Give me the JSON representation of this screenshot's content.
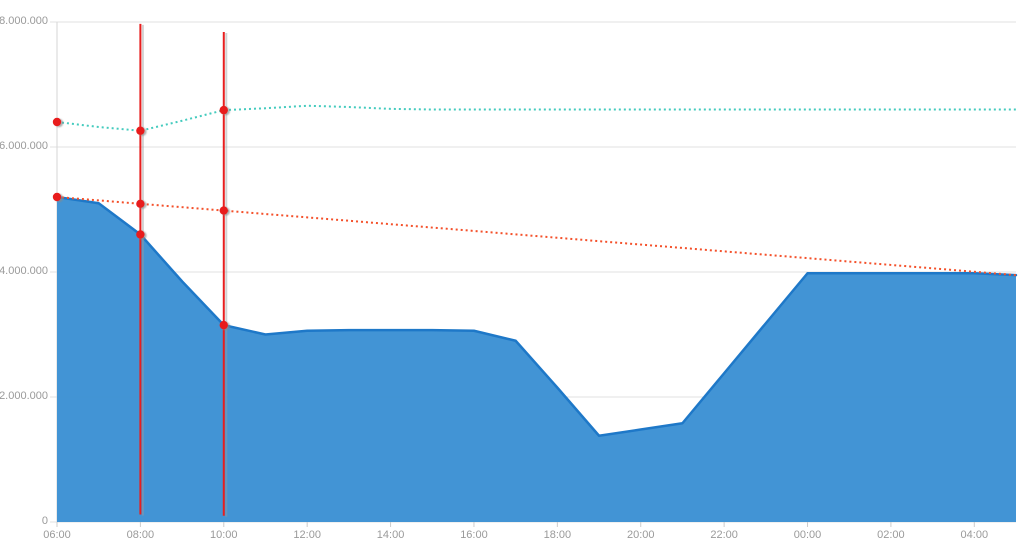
{
  "chart_data": {
    "type": "area",
    "title": "",
    "legend": "none",
    "grid": "horizontal",
    "x_categories_hourly": [
      "06:00",
      "07:00",
      "08:00",
      "09:00",
      "10:00",
      "11:00",
      "12:00",
      "13:00",
      "14:00",
      "15:00",
      "16:00",
      "17:00",
      "18:00",
      "19:00",
      "20:00",
      "21:00",
      "22:00",
      "23:00",
      "00:00",
      "01:00",
      "02:00",
      "03:00",
      "04:00",
      "05:00"
    ],
    "x_tick_labels": [
      "06:00",
      "08:00",
      "10:00",
      "12:00",
      "14:00",
      "16:00",
      "18:00",
      "20:00",
      "22:00",
      "00:00",
      "02:00",
      "04:00"
    ],
    "x_tick_indices": [
      0,
      2,
      4,
      6,
      8,
      10,
      12,
      14,
      16,
      18,
      20,
      22
    ],
    "y_axis": {
      "min": 0,
      "max": 8000000,
      "step": 2000000,
      "tick_labels": [
        "0",
        "2.000.000",
        "4.000.000",
        "6.000.000",
        "8.000.000"
      ]
    },
    "series": [
      {
        "name": "blue-area",
        "type": "area",
        "fill_color": "#3a90d3",
        "stroke_color": "#1e78c8",
        "values": [
          5200000,
          5100000,
          4600000,
          3850000,
          3150000,
          3000000,
          3060000,
          3070000,
          3070000,
          3070000,
          3060000,
          2900000,
          2150000,
          1380000,
          1480000,
          1580000,
          2380000,
          3180000,
          3980000,
          3980000,
          3980000,
          3980000,
          3980000,
          3950000
        ],
        "marker_indices": [
          2,
          4
        ]
      },
      {
        "name": "teal-dotted-line",
        "type": "dotted-line",
        "stroke_color": "#44cbbe",
        "values": [
          6400000,
          6320000,
          6260000,
          6420000,
          6590000,
          6620000,
          6660000,
          6640000,
          6610000,
          6600000,
          6600000,
          6600000,
          6600000,
          6600000,
          6600000,
          6600000,
          6600000,
          6600000,
          6600000,
          6600000,
          6600000,
          6600000,
          6600000,
          6600000
        ],
        "marker_indices": [
          0,
          2,
          4
        ]
      },
      {
        "name": "orange-dotted-line",
        "type": "dotted-line",
        "stroke_color": "#f4502a",
        "values": [
          5200000,
          5146000,
          5091000,
          5037000,
          4983000,
          4928000,
          4874000,
          4820000,
          4765000,
          4711000,
          4657000,
          4602000,
          4548000,
          4493000,
          4439000,
          4385000,
          4330000,
          4276000,
          4222000,
          4167000,
          4113000,
          4059000,
          4004000,
          3950000
        ],
        "marker_indices": [
          0,
          2,
          4
        ]
      }
    ],
    "marker_color": "#e81e1e",
    "annotations": {
      "vertical_lines": [
        {
          "category": "08:00",
          "category_index": 2,
          "from_value": 120000,
          "to_value": 7970000,
          "color": "#e81e1e"
        },
        {
          "category": "10:00",
          "category_index": 4,
          "from_value": 100000,
          "to_value": 7840000,
          "color": "#e81e1e"
        }
      ]
    },
    "colors": {
      "grid": "#e0e0e0",
      "axis_line": "#d6d6d6",
      "tick": "#cccccc",
      "label": "#9a9a9a"
    }
  }
}
